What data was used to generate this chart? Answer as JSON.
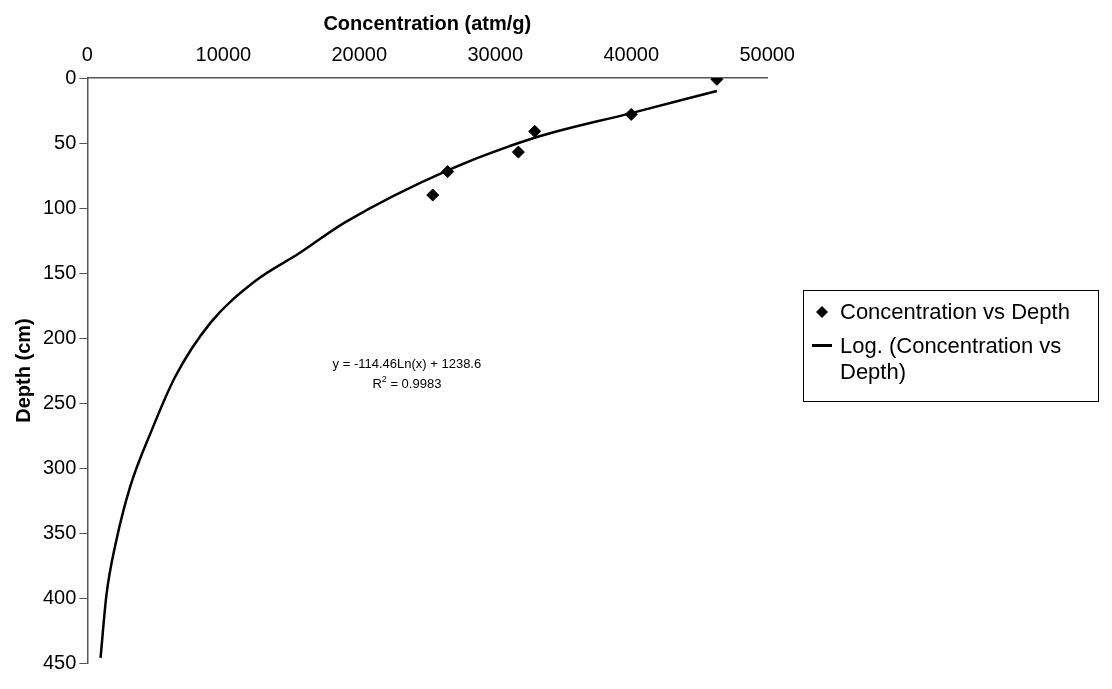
{
  "chart_data": {
    "type": "scatter",
    "xlabel": "Concentration (atm/g)",
    "ylabel": "Depth (cm)",
    "xlim": [
      0,
      50000
    ],
    "xticks": [
      0,
      10000,
      20000,
      30000,
      40000,
      50000
    ],
    "ylim": [
      450,
      0
    ],
    "yticks": [
      0,
      50,
      100,
      150,
      200,
      250,
      300,
      350,
      400,
      450
    ],
    "grid": false,
    "legend": "right",
    "annotations": [
      "y = -114.46Ln(x) + 1238.6",
      "R$^{2}$ = 0.9983"
    ],
    "series": [
      {
        "name": "Concentration vs Depth",
        "marker": "diamond",
        "color": "#000000",
        "x": [
          46300,
          40000,
          32900,
          31700,
          26500,
          25400
        ],
        "values": [
          1,
          28,
          41,
          57,
          72,
          90
        ]
      },
      {
        "name": "Log. (Concentration vs Depth)",
        "type": "line",
        "marker": "none",
        "line_style": "solid",
        "color": "#000000",
        "x": [
          46300,
          40000,
          32900,
          26500,
          18950,
          15550,
          12370,
          9080,
          6450,
          4690,
          3160,
          2060,
          1400,
          970
        ],
        "values": [
          10,
          27,
          46,
          71,
          111,
          135,
          156,
          188,
          230,
          272,
          314,
          359,
          398,
          446
        ]
      }
    ]
  }
}
